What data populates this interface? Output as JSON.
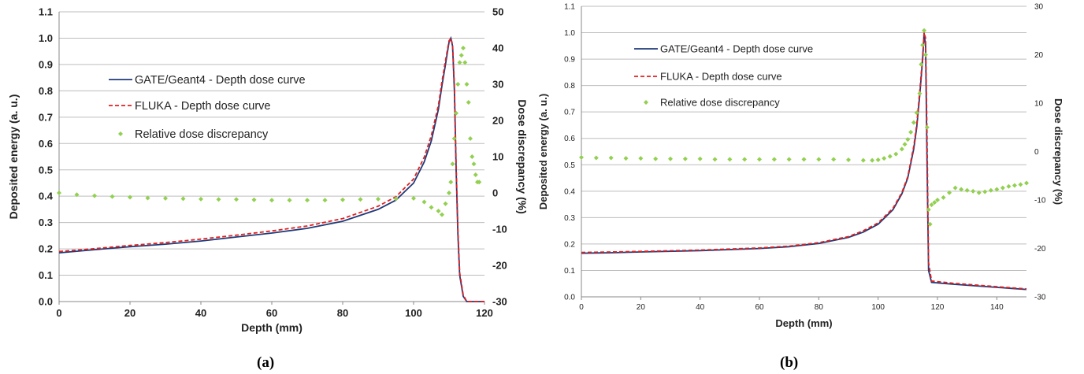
{
  "chart_data": [
    {
      "type": "line",
      "panel": "(a)",
      "xlabel": "Depth (mm)",
      "ylabel": "Deposited energy (a. u.)",
      "y2label": "Dose discrepancy (%)",
      "xlim": [
        0,
        120
      ],
      "ylim": [
        0,
        1.1
      ],
      "y2lim": [
        -30,
        50
      ],
      "xticks": [
        "0",
        "20",
        "40",
        "60",
        "80",
        "100",
        "120"
      ],
      "yticks": [
        "0.0",
        "0.1",
        "0.2",
        "0.3",
        "0.4",
        "0.5",
        "0.6",
        "0.7",
        "0.8",
        "0.9",
        "1.0",
        "1.1"
      ],
      "y2ticks": [
        "-30",
        "-20",
        "-10",
        "0",
        "10",
        "20",
        "30",
        "40",
        "50"
      ],
      "grid": true,
      "legend_position": "center-left",
      "series": [
        {
          "name": "GATE/Geant4 - Depth dose curve",
          "color": "#1f3a7a",
          "axis": "left",
          "x": [
            0,
            10,
            20,
            30,
            40,
            50,
            60,
            70,
            80,
            90,
            95,
            100,
            103,
            105,
            107,
            108,
            109,
            110,
            110.5,
            111,
            111.5,
            112,
            112.5,
            113,
            114,
            115,
            118,
            120
          ],
          "y": [
            0.185,
            0.197,
            0.208,
            0.218,
            0.23,
            0.245,
            0.26,
            0.278,
            0.305,
            0.35,
            0.385,
            0.45,
            0.53,
            0.61,
            0.73,
            0.82,
            0.9,
            0.985,
            1.0,
            0.97,
            0.8,
            0.5,
            0.25,
            0.1,
            0.02,
            0.0,
            0.0,
            0.0
          ]
        },
        {
          "name": "FLUKA - Depth dose curve",
          "color": "#e02020",
          "axis": "left",
          "x": [
            0,
            10,
            20,
            30,
            40,
            50,
            60,
            70,
            80,
            90,
            95,
            100,
            103,
            105,
            107,
            108,
            109,
            110,
            110.5,
            111,
            111.5,
            112,
            112.5,
            113,
            114,
            115,
            118,
            120
          ],
          "y": [
            0.19,
            0.201,
            0.213,
            0.224,
            0.237,
            0.252,
            0.268,
            0.287,
            0.315,
            0.362,
            0.398,
            0.465,
            0.548,
            0.63,
            0.745,
            0.835,
            0.915,
            0.99,
            1.0,
            0.975,
            0.82,
            0.52,
            0.27,
            0.11,
            0.025,
            0.0,
            0.0,
            0.0
          ]
        },
        {
          "name": "Relative dose discrepancy",
          "color": "#92d050",
          "axis": "right",
          "type": "scatter",
          "x": [
            0,
            5,
            10,
            15,
            20,
            25,
            30,
            35,
            40,
            45,
            50,
            55,
            60,
            65,
            70,
            75,
            80,
            85,
            90,
            95,
            100,
            103,
            105,
            107,
            108,
            109,
            110,
            110.5,
            111,
            111.5,
            112,
            112.5,
            113,
            113.5,
            114,
            114.5,
            115,
            115.5,
            116,
            116.5,
            117,
            117.5,
            118,
            118.5
          ],
          "y": [
            0,
            -0.5,
            -0.8,
            -1.0,
            -1.2,
            -1.4,
            -1.5,
            -1.6,
            -1.7,
            -1.8,
            -1.8,
            -1.9,
            -2.0,
            -2.0,
            -2.0,
            -2.0,
            -1.9,
            -1.8,
            -1.7,
            -1.6,
            -1.5,
            -2.5,
            -4,
            -5,
            -6,
            -3,
            0,
            3,
            8,
            15,
            22,
            30,
            36,
            38,
            40,
            36,
            30,
            25,
            15,
            10,
            8,
            5,
            3,
            3
          ]
        }
      ]
    },
    {
      "type": "line",
      "panel": "(b)",
      "xlabel": "Depth (mm)",
      "ylabel": "Deposited energy (a. u.)",
      "y2label": "Dose discrepancy (%)",
      "xlim": [
        0,
        150
      ],
      "ylim": [
        0,
        1.1
      ],
      "y2lim": [
        -30,
        30
      ],
      "xticks": [
        "0",
        "20",
        "40",
        "60",
        "80",
        "100",
        "120",
        "140"
      ],
      "yticks": [
        "0.0",
        "0.1",
        "0.2",
        "0.3",
        "0.4",
        "0.5",
        "0.6",
        "0.7",
        "0.8",
        "0.9",
        "1.0",
        "1.1"
      ],
      "y2ticks": [
        "-30",
        "-20",
        "-10",
        "0",
        "10",
        "20",
        "30"
      ],
      "grid": true,
      "legend_position": "top-left",
      "series": [
        {
          "name": "GATE/Geant4 - Depth dose curve",
          "color": "#1f3a7a",
          "axis": "left",
          "x": [
            0,
            10,
            20,
            40,
            60,
            70,
            80,
            90,
            95,
            100,
            105,
            108,
            110,
            112,
            113,
            114,
            115,
            115.5,
            116,
            116.5,
            117,
            118,
            125,
            135,
            145,
            150
          ],
          "y": [
            0.165,
            0.167,
            0.17,
            0.175,
            0.183,
            0.19,
            0.202,
            0.225,
            0.245,
            0.275,
            0.33,
            0.39,
            0.45,
            0.56,
            0.64,
            0.76,
            0.9,
            1.0,
            0.95,
            0.5,
            0.1,
            0.055,
            0.048,
            0.04,
            0.032,
            0.028
          ]
        },
        {
          "name": "FLUKA - Depth dose curve",
          "color": "#e02020",
          "axis": "left",
          "x": [
            0,
            10,
            20,
            40,
            60,
            70,
            80,
            90,
            95,
            100,
            105,
            108,
            110,
            112,
            113,
            114,
            115,
            115.5,
            116,
            116.5,
            117,
            118,
            125,
            135,
            145,
            150
          ],
          "y": [
            0.168,
            0.17,
            0.172,
            0.177,
            0.185,
            0.192,
            0.205,
            0.228,
            0.25,
            0.28,
            0.335,
            0.395,
            0.455,
            0.57,
            0.65,
            0.775,
            0.91,
            1.0,
            0.98,
            0.6,
            0.13,
            0.06,
            0.052,
            0.043,
            0.034,
            0.03
          ]
        },
        {
          "name": "Relative dose discrepancy",
          "color": "#92d050",
          "axis": "right",
          "type": "scatter",
          "x": [
            0,
            5,
            10,
            15,
            20,
            25,
            30,
            35,
            40,
            45,
            50,
            55,
            60,
            65,
            70,
            75,
            80,
            85,
            90,
            95,
            98,
            100,
            102,
            104,
            106,
            108,
            109,
            110,
            111,
            112,
            113,
            114,
            114.5,
            115,
            115.5,
            116,
            116.5,
            117,
            117.5,
            118,
            119,
            120,
            122,
            124,
            126,
            128,
            130,
            132,
            134,
            136,
            138,
            140,
            142,
            144,
            146,
            148,
            150
          ],
          "y": [
            -1.2,
            -1.3,
            -1.3,
            -1.4,
            -1.4,
            -1.5,
            -1.5,
            -1.5,
            -1.5,
            -1.6,
            -1.6,
            -1.6,
            -1.6,
            -1.6,
            -1.6,
            -1.6,
            -1.6,
            -1.6,
            -1.7,
            -1.8,
            -1.8,
            -1.7,
            -1.4,
            -1.0,
            -0.5,
            0.5,
            1.5,
            2.5,
            4,
            6,
            8,
            12,
            18,
            22,
            25,
            20,
            5,
            -12,
            -15,
            -11,
            -10.5,
            -10,
            -9.5,
            -8.5,
            -7.5,
            -7.8,
            -8.0,
            -8.2,
            -8.5,
            -8.3,
            -8.0,
            -7.8,
            -7.5,
            -7.2,
            -7.0,
            -6.8,
            -6.5
          ]
        }
      ]
    }
  ]
}
